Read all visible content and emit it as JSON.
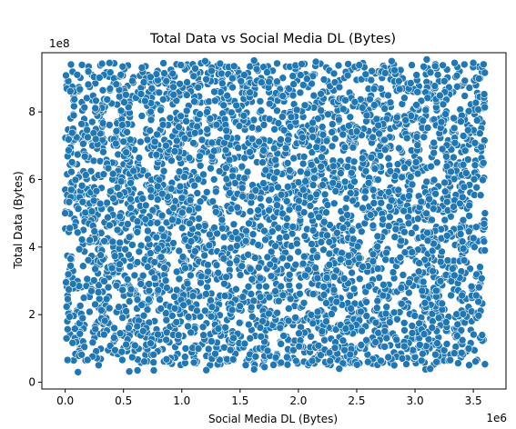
{
  "chart_data": {
    "type": "scatter",
    "title": "Total Data vs Social Media DL (Bytes)",
    "xlabel": "Social Media DL (Bytes)",
    "ylabel": "Total Data (Bytes)",
    "x_offset_label": "1e6",
    "y_offset_label": "1e8",
    "xlim": [
      -0.2,
      3.78
    ],
    "ylim": [
      -0.2,
      9.75
    ],
    "x_ticks": [
      0.0,
      0.5,
      1.0,
      1.5,
      2.0,
      2.5,
      3.0,
      3.5
    ],
    "x_tick_labels": [
      "0.0",
      "0.5",
      "1.0",
      "1.5",
      "2.0",
      "2.5",
      "3.0",
      "3.5"
    ],
    "y_ticks": [
      0,
      2,
      4,
      6,
      8
    ],
    "y_tick_labels": [
      "0",
      "2",
      "4",
      "6",
      "8"
    ],
    "grid": false,
    "legend": "none",
    "series": [
      {
        "color": "#1f77b4",
        "marker_edge_color": "#ffffff",
        "x_range": [
          0.0,
          3.6
        ],
        "y_range": [
          0.3,
          9.55
        ],
        "points": [
          [
            0.11,
            0.3
          ],
          [
            0.55,
            0.32
          ],
          [
            0.76,
            0.35
          ],
          [
            1.21,
            0.36
          ],
          [
            1.62,
            0.38
          ],
          [
            2.35,
            0.4
          ],
          [
            3.09,
            0.38
          ],
          [
            3.13,
            0.4
          ],
          [
            0.62,
            0.35
          ],
          [
            1.71,
            0.45
          ],
          [
            0.05,
            9.4
          ],
          [
            0.38,
            9.45
          ],
          [
            1.2,
            9.5
          ],
          [
            1.62,
            9.52
          ],
          [
            2.15,
            9.48
          ],
          [
            2.8,
            9.5
          ],
          [
            3.1,
            9.55
          ],
          [
            3.5,
            9.45
          ],
          [
            0.0,
            5.0
          ],
          [
            3.6,
            5.0
          ]
        ]
      }
    ]
  }
}
